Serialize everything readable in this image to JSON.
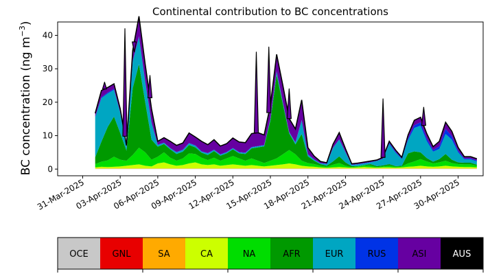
{
  "chart_data": {
    "type": "area",
    "title": "Continental contribution to BC concentrations",
    "ylabel": "BC concentration (ng m$^{-3}$)",
    "ylabel_text": "BC concentration (ng m",
    "ylabel_unit_exp": "−3",
    "ylabel_close": ")",
    "ylim": [
      -2,
      44
    ],
    "yticks": [
      0,
      10,
      20,
      30,
      40
    ],
    "xlim": [
      "2025-03-29",
      "2025-05-02"
    ],
    "xtick_labels": [
      "31-Mar-2025",
      "03-Apr-2025",
      "06-Apr-2025",
      "09-Apr-2025",
      "12-Apr-2025",
      "15-Apr-2025",
      "18-Apr-2025",
      "21-Apr-2025",
      "24-Apr-2025",
      "27-Apr-2025",
      "30-Apr-2025"
    ],
    "xtick_dates": [
      "2025-03-31",
      "2025-04-03",
      "2025-04-06",
      "2025-04-09",
      "2025-04-12",
      "2025-04-15",
      "2025-04-18",
      "2025-04-21",
      "2025-04-24",
      "2025-04-27",
      "2025-04-30"
    ],
    "x": [
      "2025-04-01 00:00",
      "2025-04-01 12:00",
      "2025-04-02 00:00",
      "2025-04-02 12:00",
      "2025-04-03 00:00",
      "2025-04-03 12:00",
      "2025-04-04 00:00",
      "2025-04-04 12:00",
      "2025-04-05 00:00",
      "2025-04-05 12:00",
      "2025-04-06 00:00",
      "2025-04-06 12:00",
      "2025-04-07 00:00",
      "2025-04-07 12:00",
      "2025-04-08 00:00",
      "2025-04-08 12:00",
      "2025-04-09 00:00",
      "2025-04-09 12:00",
      "2025-04-10 00:00",
      "2025-04-10 12:00",
      "2025-04-11 00:00",
      "2025-04-11 12:00",
      "2025-04-12 00:00",
      "2025-04-12 12:00",
      "2025-04-13 00:00",
      "2025-04-13 12:00",
      "2025-04-14 00:00",
      "2025-04-14 12:00",
      "2025-04-15 00:00",
      "2025-04-15 12:00",
      "2025-04-16 00:00",
      "2025-04-16 12:00",
      "2025-04-17 00:00",
      "2025-04-17 12:00",
      "2025-04-18 00:00",
      "2025-04-18 12:00",
      "2025-04-19 00:00",
      "2025-04-19 12:00",
      "2025-04-20 00:00",
      "2025-04-20 12:00",
      "2025-04-21 00:00",
      "2025-04-21 12:00",
      "2025-04-22 00:00",
      "2025-04-22 12:00",
      "2025-04-23 00:00",
      "2025-04-23 12:00",
      "2025-04-24 00:00",
      "2025-04-24 12:00",
      "2025-04-25 00:00",
      "2025-04-25 12:00",
      "2025-04-26 00:00",
      "2025-04-26 12:00",
      "2025-04-27 00:00",
      "2025-04-27 12:00",
      "2025-04-28 00:00",
      "2025-04-28 12:00",
      "2025-04-29 00:00",
      "2025-04-29 12:00",
      "2025-04-30 00:00",
      "2025-04-30 12:00",
      "2025-05-01 00:00",
      "2025-05-01 12:00"
    ],
    "series": [
      {
        "name": "OCE",
        "color": "#c8c8c8",
        "values": [
          0.1,
          0.1,
          0.1,
          0.1,
          0.1,
          0.1,
          0.1,
          0.1,
          0.1,
          0.1,
          0.1,
          0.1,
          0.1,
          0.1,
          0.1,
          0.1,
          0.1,
          0.1,
          0.1,
          0.1,
          0.1,
          0.1,
          0.1,
          0.1,
          0.1,
          0.1,
          0.1,
          0.1,
          0.1,
          0.1,
          0.1,
          0.1,
          0.1,
          0.1,
          0.1,
          0.1,
          0.1,
          0.1,
          0.1,
          0.1,
          0.1,
          0.1,
          0.1,
          0.1,
          0.1,
          0.1,
          0.1,
          0.1,
          0.1,
          0.1,
          0.1,
          0.1,
          0.1,
          0.1,
          0.1,
          0.1,
          0.1,
          0.1,
          0.1,
          0.1,
          0.1,
          0.1
        ]
      },
      {
        "name": "GNL",
        "color": "#e80000",
        "values": [
          0,
          0,
          0,
          0,
          0,
          0,
          0,
          0,
          0,
          0,
          0,
          0,
          0,
          0,
          0,
          0,
          0,
          0,
          0,
          0,
          0,
          0,
          0,
          0,
          0,
          0,
          0,
          0,
          0,
          0,
          0,
          0,
          0,
          0,
          0,
          0,
          0,
          0,
          0,
          0,
          0,
          0,
          0,
          0,
          0,
          0,
          0,
          0,
          0,
          0,
          0,
          0,
          0,
          0,
          0,
          0,
          0,
          0,
          0,
          0,
          0,
          0
        ]
      },
      {
        "name": "SA",
        "color": "#ffaa00",
        "values": [
          0.1,
          0.1,
          0.1,
          0.1,
          0.1,
          0.1,
          0.1,
          0.1,
          0.1,
          0.1,
          0.1,
          0.1,
          0.1,
          0.1,
          0.1,
          0.1,
          0.1,
          0.1,
          0.1,
          0.1,
          0.1,
          0.1,
          0.1,
          0.1,
          0.1,
          0.1,
          0.1,
          0.1,
          0.1,
          0.1,
          0.1,
          0.1,
          0.1,
          0.1,
          0.1,
          0.1,
          0.1,
          0.1,
          0.1,
          0.1,
          0.1,
          0.1,
          0.1,
          0.1,
          0.1,
          0.1,
          0.1,
          0.1,
          0.1,
          0.1,
          0.1,
          0.1,
          0.1,
          0.1,
          0.1,
          0.1,
          0.1,
          0.1,
          0.1,
          0.1,
          0.1,
          0.1
        ]
      },
      {
        "name": "CA",
        "color": "#ccff00",
        "values": [
          0.3,
          0.5,
          0.4,
          0.5,
          0.6,
          0.8,
          1.0,
          1.2,
          0.8,
          0.6,
          1.5,
          1.8,
          1.2,
          0.8,
          1.0,
          1.5,
          1.8,
          1.2,
          1.0,
          1.2,
          0.8,
          1.0,
          1.2,
          1.0,
          0.8,
          1.0,
          0.8,
          0.6,
          0.8,
          1.0,
          1.2,
          1.5,
          1.2,
          0.8,
          0.6,
          0.5,
          0.3,
          0.2,
          0.3,
          0.4,
          0.3,
          0.2,
          0.3,
          0.4,
          0.3,
          0.2,
          0.3,
          0.3,
          0.2,
          0.3,
          0.5,
          0.6,
          0.8,
          0.6,
          0.5,
          0.6,
          0.8,
          0.6,
          0.5,
          0.4,
          0.4,
          0.3
        ]
      },
      {
        "name": "NA",
        "color": "#00dd00",
        "values": [
          1.0,
          1.5,
          2.0,
          3.0,
          2.0,
          1.5,
          3.0,
          5.0,
          4.0,
          2.0,
          2.0,
          3.0,
          2.0,
          1.5,
          2.0,
          3.0,
          2.5,
          2.0,
          1.5,
          2.0,
          1.5,
          2.0,
          2.5,
          2.0,
          1.5,
          2.0,
          1.5,
          1.0,
          1.5,
          2.0,
          3.0,
          4.0,
          3.0,
          1.5,
          1.0,
          0.8,
          0.5,
          0.3,
          0.8,
          1.2,
          0.5,
          0.2,
          0.3,
          0.5,
          0.5,
          0.2,
          0.3,
          0.5,
          0.3,
          0.3,
          1.0,
          1.5,
          2.0,
          1.5,
          1.0,
          1.2,
          1.5,
          1.0,
          0.8,
          0.8,
          0.8,
          0.5
        ]
      },
      {
        "name": "AFR",
        "color": "#009900",
        "values": [
          2.0,
          6.0,
          10.0,
          12.0,
          8.0,
          3.0,
          20.0,
          25.0,
          15.0,
          6.0,
          3.0,
          2.5,
          2.5,
          2.0,
          2.0,
          2.5,
          2.0,
          1.5,
          1.5,
          2.0,
          1.5,
          1.5,
          2.0,
          1.5,
          2.0,
          3.0,
          4.0,
          5.0,
          12.0,
          25.0,
          15.0,
          5.0,
          3.0,
          8.0,
          2.0,
          1.0,
          0.5,
          0.3,
          1.0,
          2.0,
          1.0,
          0.3,
          0.1,
          0.1,
          0.5,
          0.3,
          0.3,
          0.5,
          0.2,
          0.2,
          3.0,
          3.0,
          2.0,
          1.0,
          0.5,
          1.0,
          2.0,
          1.0,
          0.5,
          0.5,
          0.5,
          0.3
        ]
      },
      {
        "name": "EUR",
        "color": "#00a6c2",
        "values": [
          12.0,
          13.0,
          10.0,
          8.0,
          6.0,
          1.0,
          8.0,
          8.0,
          6.0,
          5.0,
          0.5,
          0.3,
          0.3,
          0.5,
          0.5,
          0.5,
          0.5,
          0.3,
          0.5,
          0.3,
          0.3,
          0.3,
          0.3,
          0.3,
          0.3,
          0.3,
          0.3,
          0.3,
          0.5,
          1.0,
          0.5,
          0.3,
          0.5,
          4.0,
          0.5,
          0.3,
          0.2,
          0.5,
          4.0,
          5.0,
          3.0,
          0.3,
          0.5,
          0.5,
          0.5,
          1.5,
          2.0,
          6.0,
          4.0,
          2.0,
          4.0,
          7.0,
          8.0,
          5.0,
          3.0,
          3.0,
          6.0,
          6.0,
          3.0,
          1.0,
          1.0,
          1.0
        ]
      },
      {
        "name": "RUS",
        "color": "#0033e6",
        "values": [
          0.2,
          0.3,
          0.3,
          0.3,
          0.2,
          0.1,
          0.3,
          0.3,
          0.3,
          0.2,
          0.1,
          0.1,
          0.1,
          0.1,
          0.1,
          0.1,
          0.1,
          0.1,
          0.1,
          0.1,
          0.1,
          0.1,
          0.1,
          0.1,
          0.1,
          0.1,
          0.1,
          0.1,
          0.1,
          0.1,
          0.1,
          0.1,
          0.1,
          0.2,
          0.1,
          0.1,
          0.1,
          0.1,
          0.1,
          0.1,
          0.1,
          0.1,
          0.1,
          0.1,
          0.1,
          0.1,
          0.1,
          0.3,
          0.3,
          0.2,
          0.5,
          0.8,
          1.0,
          0.8,
          0.5,
          0.8,
          1.5,
          1.0,
          0.5,
          0.3,
          0.3,
          0.3
        ]
      },
      {
        "name": "ASI",
        "color": "#6600a1",
        "values": [
          1.0,
          2.0,
          1.5,
          1.5,
          1.0,
          0.5,
          3.0,
          6.0,
          5.0,
          4.0,
          1.0,
          1.5,
          2.0,
          2.0,
          2.0,
          3.0,
          2.5,
          3.0,
          2.5,
          3.0,
          2.5,
          2.5,
          3.0,
          3.0,
          3.0,
          4.0,
          4.0,
          3.0,
          4.0,
          5.0,
          5.0,
          4.0,
          4.0,
          6.0,
          2.0,
          1.0,
          0.5,
          0.3,
          1.0,
          2.0,
          1.0,
          0.3,
          0.3,
          0.3,
          0.3,
          0.2,
          0.3,
          0.5,
          0.5,
          0.3,
          1.0,
          1.5,
          1.5,
          1.5,
          1.0,
          1.5,
          2.0,
          1.5,
          1.0,
          0.5,
          0.5,
          0.5
        ]
      },
      {
        "name": "AUS",
        "color": "#000000",
        "values": [
          0,
          0,
          0,
          0,
          0,
          0,
          0,
          0,
          0,
          0,
          0,
          0,
          0,
          0,
          0,
          0,
          0,
          0,
          0,
          0,
          0,
          0,
          0,
          0,
          0,
          0,
          0,
          0,
          0,
          0,
          0,
          0,
          0,
          0,
          0,
          0,
          0,
          0,
          0,
          0,
          0,
          0,
          0,
          0,
          0,
          0,
          0,
          0,
          0,
          0,
          0,
          0,
          0,
          0,
          0,
          0,
          0,
          0,
          0,
          0,
          0,
          0
        ]
      }
    ],
    "total_peaks": [
      {
        "x": "2025-04-01 18:00",
        "y": 26
      },
      {
        "x": "2025-04-03 09:00",
        "y": 42
      },
      {
        "x": "2025-04-04 03:00",
        "y": 35
      },
      {
        "x": "2025-04-05 09:00",
        "y": 28
      },
      {
        "x": "2025-04-13 21:00",
        "y": 35
      },
      {
        "x": "2025-04-14 21:00",
        "y": 36.5
      },
      {
        "x": "2025-04-16 12:00",
        "y": 24
      },
      {
        "x": "2025-04-24 00:00",
        "y": 21
      },
      {
        "x": "2025-04-27 06:00",
        "y": 18.5
      }
    ],
    "legend": {
      "placement": "bottom",
      "entries": [
        {
          "name": "OCE",
          "color": "#c8c8c8",
          "text_color": "#000000"
        },
        {
          "name": "GNL",
          "color": "#e80000",
          "text_color": "#000000"
        },
        {
          "name": "SA",
          "color": "#ffaa00",
          "text_color": "#000000"
        },
        {
          "name": "CA",
          "color": "#ccff00",
          "text_color": "#000000"
        },
        {
          "name": "NA",
          "color": "#00dd00",
          "text_color": "#000000"
        },
        {
          "name": "AFR",
          "color": "#009900",
          "text_color": "#000000"
        },
        {
          "name": "EUR",
          "color": "#00a6c2",
          "text_color": "#000000"
        },
        {
          "name": "RUS",
          "color": "#0033e6",
          "text_color": "#000000"
        },
        {
          "name": "ASI",
          "color": "#6600a1",
          "text_color": "#000000"
        },
        {
          "name": "AUS",
          "color": "#000000",
          "text_color": "#ffffff"
        }
      ]
    },
    "grid": false
  }
}
